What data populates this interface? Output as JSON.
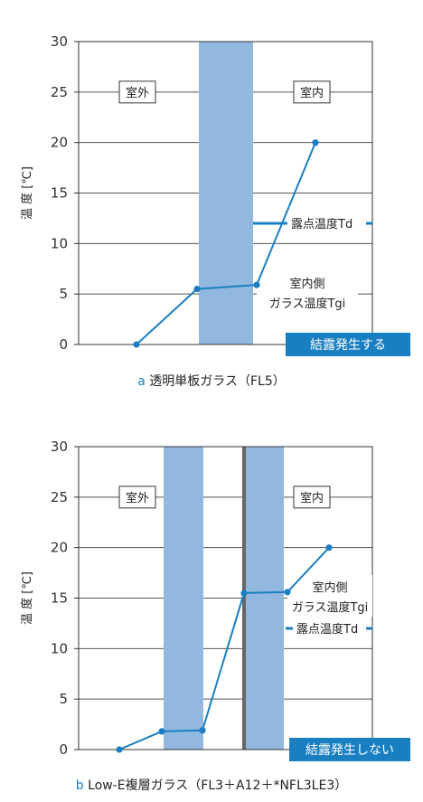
{
  "charts": [
    {
      "id": "a",
      "type": "line",
      "y_axis_label": "温 度 [℃]",
      "ylim": [
        0,
        30
      ],
      "y_ticks": [
        "0",
        "5",
        "10",
        "15",
        "20",
        "25",
        "30"
      ],
      "region_labels": {
        "outside": "室外",
        "inside": "室内"
      },
      "dew_point_label": "露点温度Td",
      "dew_point_value": 12,
      "surface_label_line1": "室内側",
      "surface_label_line2": "ガラス温度Tgi",
      "result_label": "結露発生する",
      "caption_letter": "a",
      "caption_text": " 透明単板ガラス（FL5）",
      "points": [
        0,
        5.5,
        5.9,
        20
      ],
      "colors": {
        "glass": "#92b8e0",
        "line": "#1a7fc1",
        "result_box": "#1a7fc1"
      }
    },
    {
      "id": "b",
      "type": "line",
      "y_axis_label": "温 度 [℃]",
      "ylim": [
        0,
        30
      ],
      "y_ticks": [
        "0",
        "5",
        "10",
        "15",
        "20",
        "25",
        "30"
      ],
      "region_labels": {
        "outside": "室外",
        "inside": "室内"
      },
      "dew_point_label": "露点温度Td",
      "dew_point_value": 12,
      "surface_label_line1": "室内側",
      "surface_label_line2": "ガラス温度Tgi",
      "result_label": "結露発生しない",
      "caption_letter": "b",
      "caption_text": " Low-E複層ガラス（FL3＋A12＋*NFL3LE3）",
      "points": [
        0,
        1.8,
        1.9,
        15.5,
        15.6,
        20
      ],
      "colors": {
        "glass": "#92b8e0",
        "line": "#1a7fc1",
        "result_box": "#1a7fc1",
        "spacer": "#666666"
      }
    }
  ]
}
